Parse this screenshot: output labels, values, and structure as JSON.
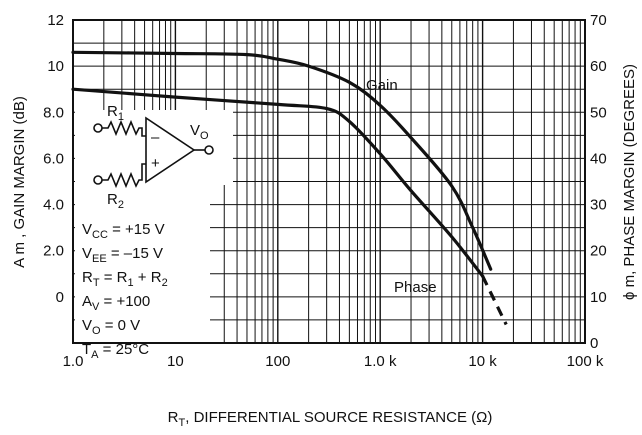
{
  "chart_data": {
    "type": "line",
    "xlabel": "R",
    "xlabel_sub": "T",
    "xlabel_rest": ", DIFFERENTIAL SOURCE RESISTANCE (Ω)",
    "ylabel_left": "A m , GAIN MARGIN (dB)",
    "ylabel_right": "ϕ m, PHASE MARGIN (DEGREES)",
    "x_scale": "log",
    "xlim": [
      1,
      100000
    ],
    "ylim_left": [
      -2,
      12
    ],
    "ylim_right": [
      0,
      70
    ],
    "grid": true,
    "x_ticks": [
      {
        "value": 1,
        "label": "1.0"
      },
      {
        "value": 10,
        "label": "10"
      },
      {
        "value": 100,
        "label": "100"
      },
      {
        "value": 1000,
        "label": "1.0 k"
      },
      {
        "value": 10000,
        "label": "10 k"
      },
      {
        "value": 100000,
        "label": "100 k"
      }
    ],
    "y_ticks_left": [
      {
        "value": 12,
        "label": "12"
      },
      {
        "value": 10,
        "label": "10"
      },
      {
        "value": 8,
        "label": "8.0"
      },
      {
        "value": 6,
        "label": "6.0"
      },
      {
        "value": 4,
        "label": "4.0"
      },
      {
        "value": 2,
        "label": "2.0"
      },
      {
        "value": 0,
        "label": "0"
      }
    ],
    "y_ticks_right": [
      {
        "value": 70,
        "label": "70"
      },
      {
        "value": 60,
        "label": "60"
      },
      {
        "value": 50,
        "label": "50"
      },
      {
        "value": 40,
        "label": "40"
      },
      {
        "value": 30,
        "label": "30"
      },
      {
        "value": 20,
        "label": "20"
      },
      {
        "value": 10,
        "label": "10"
      },
      {
        "value": 0,
        "label": "0"
      }
    ],
    "series": [
      {
        "name": "Gain",
        "axis": "left",
        "points": [
          {
            "x": 1,
            "y": 10.6
          },
          {
            "x": 10,
            "y": 10.55
          },
          {
            "x": 50,
            "y": 10.5
          },
          {
            "x": 100,
            "y": 10.3
          },
          {
            "x": 200,
            "y": 10.0
          },
          {
            "x": 500,
            "y": 9.3
          },
          {
            "x": 1000,
            "y": 8.3
          },
          {
            "x": 2000,
            "y": 6.9
          },
          {
            "x": 5000,
            "y": 4.8
          },
          {
            "x": 8000,
            "y": 3.0
          },
          {
            "x": 12000,
            "y": 1.2
          }
        ]
      },
      {
        "name": "Phase",
        "axis": "right",
        "points": [
          {
            "x": 1,
            "y": 55
          },
          {
            "x": 10,
            "y": 53.3
          },
          {
            "x": 100,
            "y": 51.7
          },
          {
            "x": 300,
            "y": 50.8
          },
          {
            "x": 500,
            "y": 48
          },
          {
            "x": 1000,
            "y": 41
          },
          {
            "x": 2000,
            "y": 33
          },
          {
            "x": 5000,
            "y": 23
          },
          {
            "x": 10000,
            "y": 14.5
          }
        ],
        "extension_dashed": [
          {
            "x": 10000,
            "y": 14.5
          },
          {
            "x": 17000,
            "y": 4
          }
        ]
      }
    ]
  },
  "annotations": {
    "gain_label": "Gain",
    "phase_label": "Phase"
  },
  "circuit": {
    "r1_main": "R",
    "r1_sub": "1",
    "r2_main": "R",
    "r2_sub": "2",
    "vo_main": "V",
    "vo_sub": "O",
    "minus": "–",
    "plus": "+"
  },
  "conditions": [
    {
      "main": "V",
      "sub": "CC",
      "rest": " =  +15 V"
    },
    {
      "main": "V",
      "sub": "EE",
      "rest": " = –15 V"
    },
    {
      "main": "R",
      "sub": "T",
      "rest": " = R",
      "sub2": "1",
      "rest2": " + R",
      "sub3": "2"
    },
    {
      "main": "A",
      "sub": "V",
      "rest": " = +100"
    },
    {
      "main": "V",
      "sub": "O",
      "rest": " = 0 V"
    },
    {
      "main": "T",
      "sub": "A",
      "rest": " = 25°C"
    }
  ]
}
